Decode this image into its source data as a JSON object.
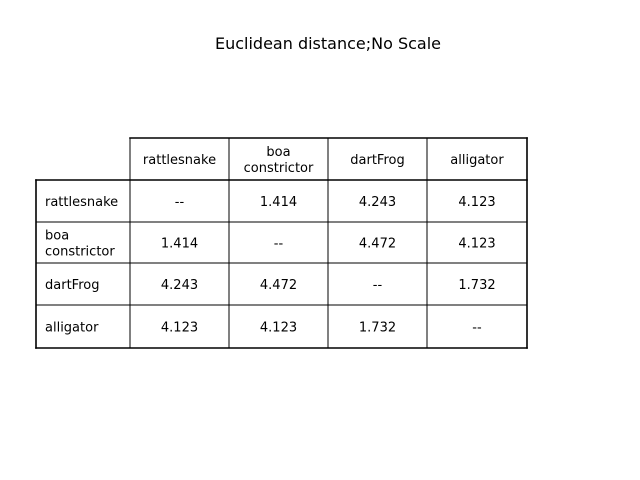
{
  "chart_data": {
    "type": "table",
    "title": "Euclidean distance;No Scale",
    "columns": [
      "rattlesnake",
      "boa\nconstrictor",
      "dartFrog",
      "alligator"
    ],
    "rows": [
      {
        "label": "rattlesnake",
        "values": [
          "--",
          "1.414",
          "4.243",
          "4.123"
        ]
      },
      {
        "label": "boa\nconstrictor",
        "values": [
          "1.414",
          "--",
          "4.472",
          "4.123"
        ]
      },
      {
        "label": "dartFrog",
        "values": [
          "4.243",
          "4.472",
          "--",
          "1.732"
        ]
      },
      {
        "label": "alligator",
        "values": [
          "4.123",
          "4.123",
          "1.732",
          "--"
        ]
      }
    ]
  }
}
